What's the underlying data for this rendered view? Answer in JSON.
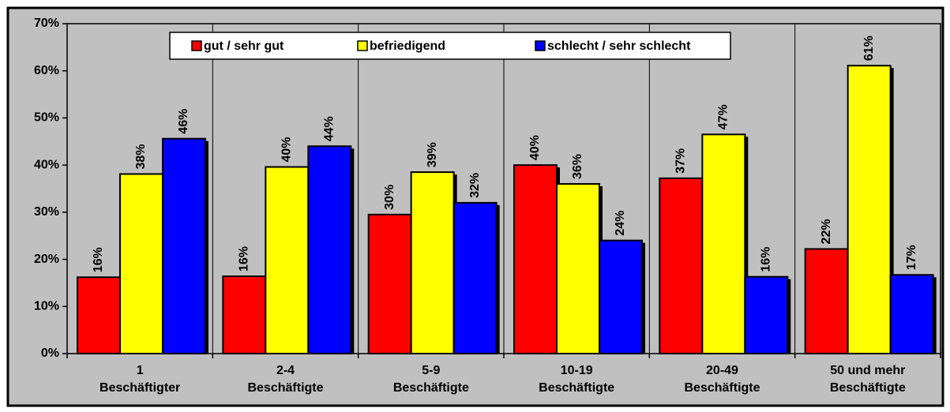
{
  "chart_data": {
    "type": "bar",
    "categories": [
      [
        "1",
        "Beschäftigter"
      ],
      [
        "2-4",
        "Beschäftigte"
      ],
      [
        "5-9",
        "Beschäftigte"
      ],
      [
        "10-19",
        "Beschäftigte"
      ],
      [
        "20-49",
        "Beschäftigte"
      ],
      [
        "50 und mehr",
        "Beschäftigte"
      ]
    ],
    "series": [
      {
        "name": "gut / sehr gut",
        "color": "#ff0000",
        "values": [
          16.2,
          16.4,
          29.5,
          40,
          37.2,
          22.2
        ],
        "value_labels": [
          "16%",
          "16%",
          "30%",
          "40%",
          "37%",
          "22%"
        ]
      },
      {
        "name": "befriedigend",
        "color": "#ffff00",
        "values": [
          38.1,
          39.6,
          38.5,
          36,
          46.5,
          61.1
        ],
        "value_labels": [
          "38%",
          "40%",
          "39%",
          "36%",
          "47%",
          "61%"
        ]
      },
      {
        "name": "schlecht / sehr schlecht",
        "color": "#0000ff",
        "values": [
          45.6,
          44,
          32,
          24,
          16.3,
          16.7
        ],
        "value_labels": [
          "46%",
          "44%",
          "32%",
          "24%",
          "16%",
          "17%"
        ]
      }
    ],
    "ylim": [
      0,
      70
    ],
    "yticks": [
      {
        "value": 0,
        "label": "0%"
      },
      {
        "value": 10,
        "label": "10%"
      },
      {
        "value": 20,
        "label": "20%"
      },
      {
        "value": 30,
        "label": "30%"
      },
      {
        "value": 40,
        "label": "40%"
      },
      {
        "value": 50,
        "label": "50%"
      },
      {
        "value": 60,
        "label": "60%"
      },
      {
        "value": 70,
        "label": "70%"
      }
    ],
    "legend": "top"
  }
}
